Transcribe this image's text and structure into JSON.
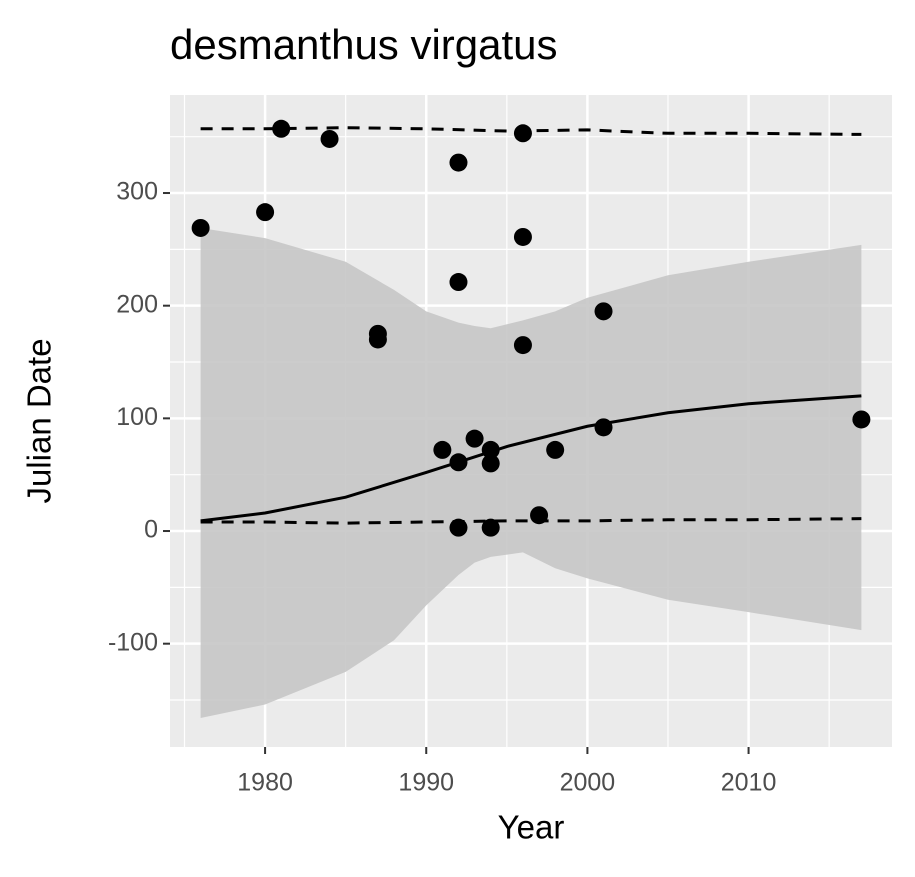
{
  "chart_data": {
    "type": "scatter",
    "title": "desmanthus virgatus",
    "xlabel": "Year",
    "ylabel": "Julian Date",
    "xlim": [
      1974.1,
      2018.9
    ],
    "ylim": [
      -191.7,
      387
    ],
    "xticks": [
      1980,
      1990,
      2000,
      2010
    ],
    "yticks": [
      -100,
      0,
      100,
      200,
      300
    ],
    "x_minor_ticks": [
      1975,
      1985,
      1995,
      2005,
      2015
    ],
    "y_minor_ticks": [
      -150,
      -50,
      50,
      150,
      250,
      350
    ],
    "grid": true,
    "points": {
      "color": "#000000",
      "x": [
        1976,
        1980,
        1981,
        1984,
        1987,
        1987,
        1991,
        1992,
        1992,
        1992,
        1992,
        1993,
        1994,
        1994,
        1994,
        1996,
        1996,
        1996,
        1997,
        1998,
        2001,
        2001,
        2017
      ],
      "y": [
        269,
        283,
        357,
        348,
        175,
        170,
        72,
        327,
        221,
        61,
        3,
        82,
        72,
        60,
        3,
        353,
        261,
        165,
        14,
        72,
        195,
        92,
        99
      ]
    },
    "ribbon": {
      "color": "#c6c6c6",
      "x": [
        1976,
        1980,
        1985,
        1988,
        1990,
        1992,
        1993,
        1994,
        1996,
        1998,
        2000,
        2005,
        2010,
        2017
      ],
      "upper": [
        269,
        260,
        239,
        214,
        195,
        185,
        182,
        180,
        187,
        195,
        207,
        227,
        239,
        254
      ],
      "lower": [
        -166,
        -154,
        -125,
        -97,
        -66,
        -39,
        -28,
        -23,
        -19,
        -33,
        -42,
        -61,
        -72,
        -88
      ]
    },
    "fit": {
      "color": "#000000",
      "x": [
        1976,
        1980,
        1985,
        1990,
        1995,
        2000,
        2005,
        2010,
        2017
      ],
      "y": [
        9,
        16,
        30,
        52,
        75,
        93,
        105,
        113,
        120
      ]
    },
    "quantiles": [
      {
        "x": [
          1976,
          1980,
          1985,
          1990,
          1995,
          2000,
          2005,
          2010,
          2017
        ],
        "y": [
          357,
          357,
          358,
          357,
          355,
          356,
          353,
          353,
          352
        ]
      },
      {
        "x": [
          1976,
          1980,
          1985,
          1990,
          1995,
          2000,
          2005,
          2010,
          2017
        ],
        "y": [
          8,
          8,
          7,
          8,
          9,
          9,
          10,
          10,
          11
        ]
      }
    ]
  }
}
